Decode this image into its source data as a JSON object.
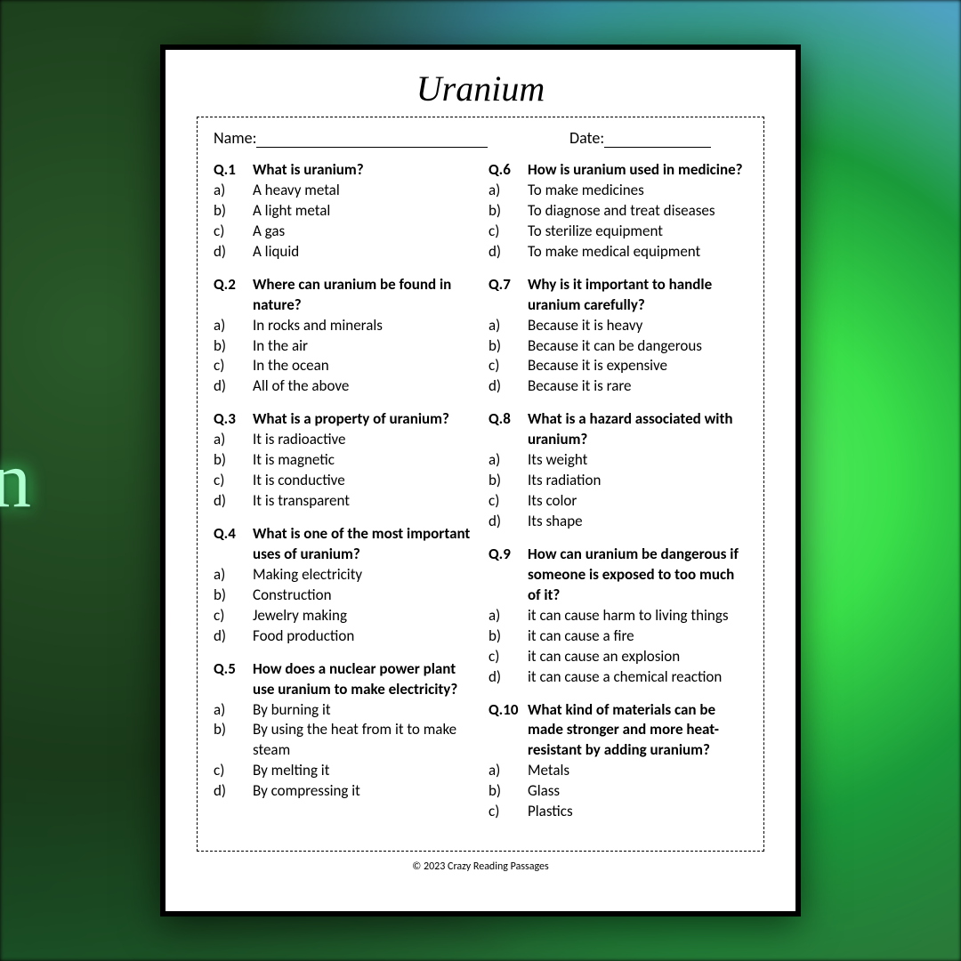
{
  "title": "Uranium",
  "name_label": "Name:",
  "date_label": "Date:",
  "footer": "© 2023 Crazy Reading Passages",
  "bg_letter": "n",
  "colors": {
    "page_bg": "#ffffff",
    "page_border": "#000000",
    "text": "#000000",
    "bg_glow": "#40ff80"
  },
  "questions_left": [
    {
      "num": "Q.1",
      "text": "What is uranium?",
      "answers": [
        {
          "l": "a)",
          "t": "A heavy metal"
        },
        {
          "l": "b)",
          "t": "A light metal"
        },
        {
          "l": "c)",
          "t": "A gas"
        },
        {
          "l": "d)",
          "t": "A liquid"
        }
      ]
    },
    {
      "num": "Q.2",
      "text": "Where can uranium be found in nature?",
      "answers": [
        {
          "l": "a)",
          "t": "In rocks and minerals"
        },
        {
          "l": "b)",
          "t": "In the air"
        },
        {
          "l": "c)",
          "t": "In the ocean"
        },
        {
          "l": "d)",
          "t": "All of the above"
        }
      ]
    },
    {
      "num": "Q.3",
      "text": "What is a property of uranium?",
      "answers": [
        {
          "l": "a)",
          "t": "It is radioactive"
        },
        {
          "l": "b)",
          "t": "It is magnetic"
        },
        {
          "l": "c)",
          "t": "It is conductive"
        },
        {
          "l": "d)",
          "t": "It is transparent"
        }
      ]
    },
    {
      "num": "Q.4",
      "text": "What is one of the most important uses of uranium?",
      "answers": [
        {
          "l": "a)",
          "t": "Making electricity"
        },
        {
          "l": "b)",
          "t": "Construction"
        },
        {
          "l": "c)",
          "t": "Jewelry making"
        },
        {
          "l": "d)",
          "t": "Food production"
        }
      ]
    },
    {
      "num": "Q.5",
      "text": "How does a nuclear power plant use uranium to make electricity?",
      "answers": [
        {
          "l": "a)",
          "t": "By burning it"
        },
        {
          "l": "b)",
          "t": "By using the heat from it to make steam"
        },
        {
          "l": "c)",
          "t": "By melting it"
        },
        {
          "l": "d)",
          "t": "By compressing it"
        }
      ]
    }
  ],
  "questions_right": [
    {
      "num": "Q.6",
      "text": "How is uranium used in medicine?",
      "answers": [
        {
          "l": "a)",
          "t": "To make medicines"
        },
        {
          "l": "b)",
          "t": "To diagnose and treat diseases"
        },
        {
          "l": "c)",
          "t": "To sterilize equipment"
        },
        {
          "l": "d)",
          "t": "To make medical equipment"
        }
      ]
    },
    {
      "num": "Q.7",
      "text": "Why is it important to handle uranium carefully?",
      "answers": [
        {
          "l": "a)",
          "t": "Because it is heavy"
        },
        {
          "l": "b)",
          "t": "Because it can be dangerous"
        },
        {
          "l": "c)",
          "t": "Because it is expensive"
        },
        {
          "l": "d)",
          "t": "Because it is rare"
        }
      ]
    },
    {
      "num": "Q.8",
      "text": "What is a hazard associated with uranium?",
      "answers": [
        {
          "l": "a)",
          "t": "Its weight"
        },
        {
          "l": "b)",
          "t": "Its radiation"
        },
        {
          "l": "c)",
          "t": "Its color"
        },
        {
          "l": "d)",
          "t": "Its shape"
        }
      ]
    },
    {
      "num": "Q.9",
      "text": "How can uranium be dangerous if someone is exposed to too much of it?",
      "answers": [
        {
          "l": "a)",
          "t": "it can cause harm to living things"
        },
        {
          "l": "b)",
          "t": "it can cause a fire"
        },
        {
          "l": "c)",
          "t": "it can cause an explosion"
        },
        {
          "l": "d)",
          "t": "it can cause a chemical reaction"
        }
      ]
    },
    {
      "num": "Q.10",
      "text": "What kind of materials can be made stronger and more heat-resistant by adding uranium?",
      "answers": [
        {
          "l": "a)",
          "t": "Metals"
        },
        {
          "l": "b)",
          "t": "Glass"
        },
        {
          "l": "c)",
          "t": "Plastics"
        }
      ]
    }
  ]
}
